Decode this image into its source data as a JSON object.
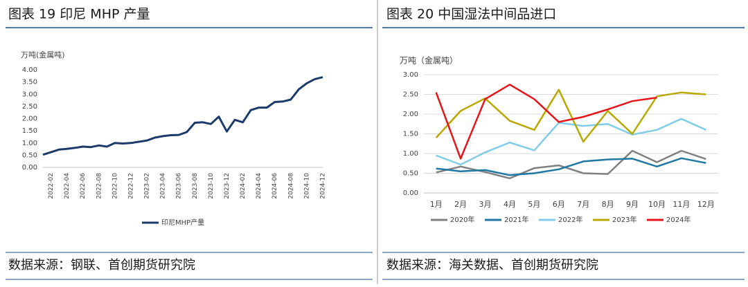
{
  "chart_data": [
    {
      "type": "line",
      "title": "图表 19 印尼 MHP 产量",
      "source": "数据来源：钢联、首创期货研究院",
      "y_label": "万吨(金属吨)",
      "categories": [
        null,
        "2022-02",
        null,
        "2022-04",
        null,
        "2022-06",
        null,
        "2022-08",
        null,
        "2022-10",
        null,
        "2022-12",
        null,
        "2023-02",
        null,
        "2023-04",
        null,
        "2023-06",
        null,
        "2023-08",
        null,
        "2023-10",
        null,
        "2023-12",
        null,
        "2024-02",
        null,
        "2024-04",
        null,
        "2024-06",
        null,
        "2024-08",
        null,
        "2024-10",
        null,
        "2024-12"
      ],
      "series": [
        {
          "name": "印尼MHP产量",
          "color": "#1b3a6b",
          "values": [
            0.52,
            0.62,
            0.73,
            0.76,
            0.8,
            0.85,
            0.83,
            0.9,
            0.85,
            1.0,
            0.98,
            1.0,
            1.05,
            1.1,
            1.22,
            1.28,
            1.32,
            1.33,
            1.45,
            1.83,
            1.85,
            1.78,
            2.08,
            1.47,
            1.95,
            1.85,
            2.35,
            2.45,
            2.45,
            2.68,
            2.7,
            2.78,
            3.2,
            3.45,
            3.62,
            3.7
          ]
        }
      ],
      "ylim": [
        0,
        4
      ],
      "yticks": [
        {
          "value": 0,
          "label": "0.00"
        },
        {
          "value": 0.5,
          "label": "0.50"
        },
        {
          "value": 1,
          "label": "1.00"
        },
        {
          "value": 1.5,
          "label": "1.50"
        },
        {
          "value": 2,
          "label": "2.00"
        },
        {
          "value": 2.5,
          "label": "2.50"
        },
        {
          "value": 3,
          "label": "3.00"
        },
        {
          "value": 3.5,
          "label": "3.50"
        },
        {
          "value": 4,
          "label": "4.00"
        }
      ],
      "grid": false,
      "legend": "bottom"
    },
    {
      "type": "line",
      "title": "图表 20 中国湿法中间品进口",
      "source": "数据来源：海关数据、首创期货研究院",
      "y_label": "万吨（金属吨）",
      "categories": [
        "1月",
        "2月",
        "3月",
        "4月",
        "5月",
        "6月",
        "7月",
        "8月",
        "9月",
        "10月",
        "11月",
        "12月"
      ],
      "series": [
        {
          "name": "2020年",
          "color": "#808080",
          "values": [
            0.52,
            0.67,
            0.53,
            0.37,
            0.63,
            0.7,
            0.5,
            0.48,
            1.07,
            0.78,
            1.07,
            0.86
          ]
        },
        {
          "name": "2021年",
          "color": "#1f77a4",
          "values": [
            0.62,
            0.55,
            0.58,
            0.45,
            0.5,
            0.6,
            0.8,
            0.85,
            0.87,
            0.67,
            0.88,
            0.76
          ]
        },
        {
          "name": "2022年",
          "color": "#80cde8",
          "values": [
            0.95,
            0.72,
            1.03,
            1.28,
            1.08,
            1.78,
            1.7,
            1.75,
            1.48,
            1.6,
            1.88,
            1.6
          ]
        },
        {
          "name": "2023年",
          "color": "#b8a800",
          "values": [
            1.4,
            2.08,
            2.4,
            1.83,
            1.6,
            2.62,
            1.3,
            2.08,
            1.5,
            2.45,
            2.55,
            2.5
          ]
        },
        {
          "name": "2024年",
          "color": "#e8141c",
          "values": [
            2.55,
            0.87,
            2.38,
            2.75,
            2.38,
            1.8,
            1.93,
            2.12,
            2.33,
            2.42,
            null,
            null
          ]
        }
      ],
      "ylim": [
        0,
        3
      ],
      "yticks": [
        {
          "value": 0,
          "label": "0.00"
        },
        {
          "value": 0.5,
          "label": "0.50"
        },
        {
          "value": 1,
          "label": "1.00"
        },
        {
          "value": 1.5,
          "label": "1.50"
        },
        {
          "value": 2,
          "label": "2.00"
        },
        {
          "value": 2.5,
          "label": "2.50"
        },
        {
          "value": 3,
          "label": "3.00"
        }
      ],
      "grid": true,
      "legend": "bottom"
    }
  ]
}
